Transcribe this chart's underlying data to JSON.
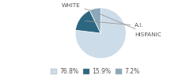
{
  "labels": [
    "WHITE",
    "A.I.",
    "HISPANIC"
  ],
  "values": [
    76.8,
    15.9,
    7.2
  ],
  "colors": [
    "#ccdce8",
    "#2d6680",
    "#8aaabb"
  ],
  "legend_labels": [
    "76.8%",
    "15.9%",
    "7.2%"
  ],
  "startangle": 90,
  "label_fontsize": 5.2,
  "legend_fontsize": 5.5,
  "fig_bg": "#ffffff",
  "label_color": "#555555",
  "legend_edge_color": "#aaaaaa"
}
